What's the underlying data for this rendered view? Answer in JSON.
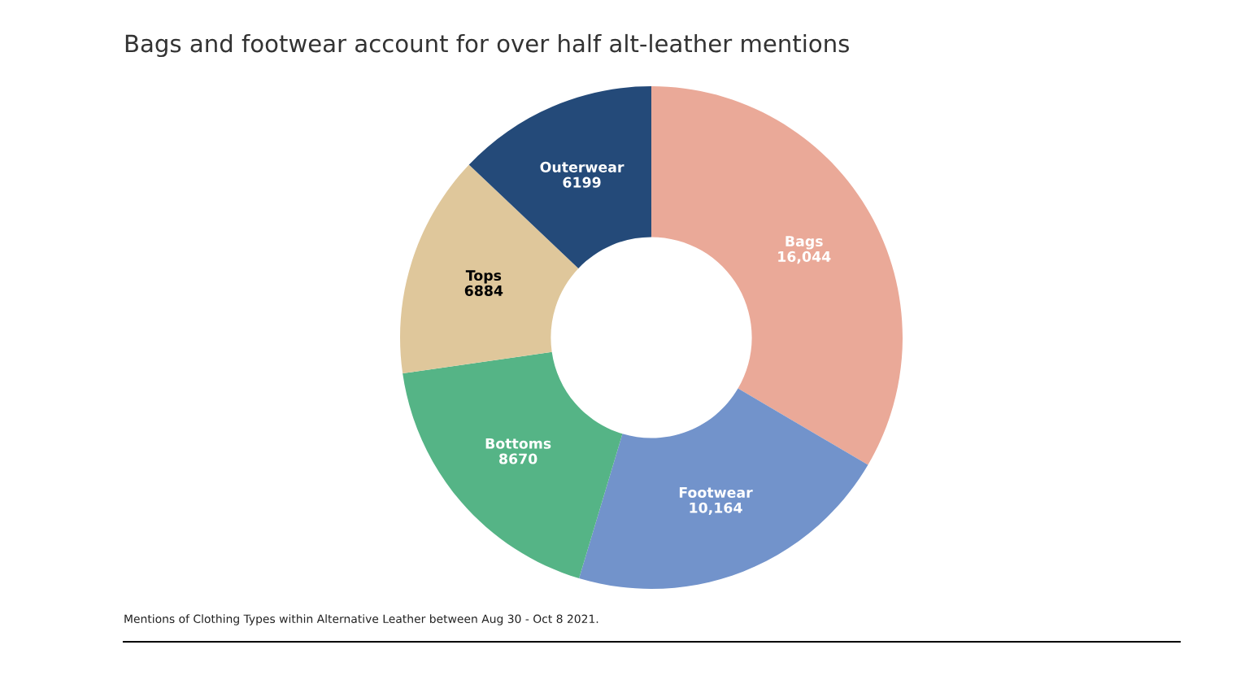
{
  "chart_data": {
    "type": "donut",
    "title": "Bags and footwear account for over half alt-leather mentions",
    "categories": [
      "Bags",
      "Footwear",
      "Bottoms",
      "Tops",
      "Outerwear"
    ],
    "values": [
      16044,
      10164,
      8670,
      6884,
      6199
    ],
    "colors": [
      "#eaa998",
      "#7293cb",
      "#55b486",
      "#dfc79b",
      "#244a79"
    ],
    "value_labels": [
      "16,044",
      "10,164",
      "8670",
      "6884",
      "6199"
    ],
    "annotations": [
      "Mentions of Clothing Types within Alternative Leather between Aug 30 - Oct 8 2021."
    ]
  }
}
